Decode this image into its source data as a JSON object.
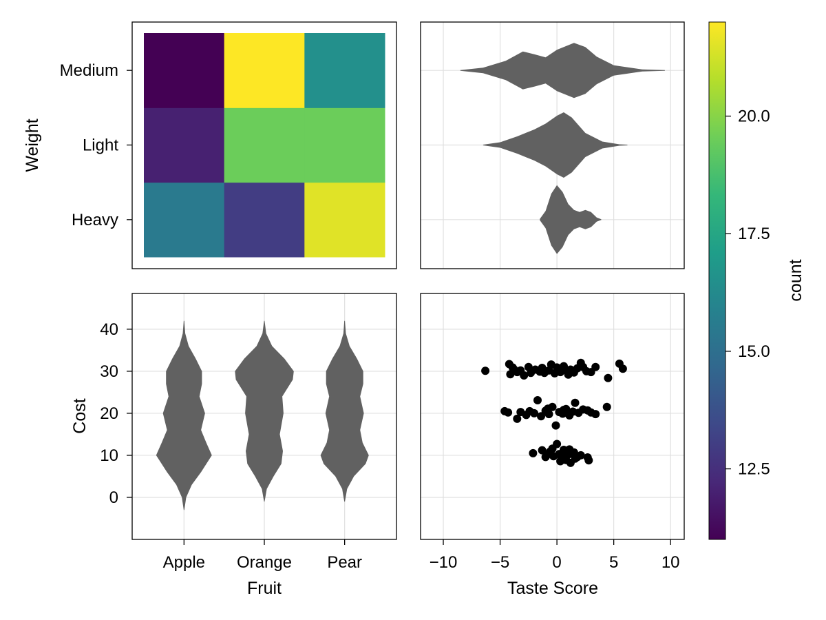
{
  "chart_data": [
    {
      "panel": "top-left",
      "type": "heatmap",
      "x_categories": [
        "Apple",
        "Orange",
        "Pear"
      ],
      "y_categories": [
        "Heavy",
        "Light",
        "Medium"
      ],
      "ylabel": "Weight",
      "values": [
        [
          15.5,
          13.0,
          21.5
        ],
        [
          12.0,
          19.5,
          19.5
        ],
        [
          11.0,
          22.0,
          16.5
        ]
      ]
    },
    {
      "panel": "top-right",
      "type": "violin",
      "orientation": "horizontal",
      "x_ticks": [
        -10,
        -5,
        0,
        5,
        10
      ],
      "xlim": [
        -12,
        11.2
      ],
      "y_categories": [
        "Heavy",
        "Light",
        "Medium"
      ],
      "grid": true,
      "series": [
        {
          "category": "Heavy",
          "profile": [
            [
              -1.5,
              0.02
            ],
            [
              -1.0,
              0.25
            ],
            [
              -0.5,
              0.75
            ],
            [
              0.0,
              1.0
            ],
            [
              0.5,
              0.8
            ],
            [
              1.0,
              0.45
            ],
            [
              1.5,
              0.28
            ],
            [
              2.0,
              0.22
            ],
            [
              2.5,
              0.28
            ],
            [
              3.0,
              0.22
            ],
            [
              3.5,
              0.06
            ],
            [
              3.9,
              0.01
            ]
          ]
        },
        {
          "category": "Light",
          "profile": [
            [
              -6.5,
              0.01
            ],
            [
              -5.0,
              0.08
            ],
            [
              -3.5,
              0.25
            ],
            [
              -2.0,
              0.45
            ],
            [
              -1.0,
              0.62
            ],
            [
              0.0,
              0.85
            ],
            [
              0.6,
              0.95
            ],
            [
              1.3,
              0.8
            ],
            [
              2.5,
              0.35
            ],
            [
              4.0,
              0.1
            ],
            [
              5.5,
              0.02
            ],
            [
              6.2,
              0.01
            ]
          ]
        },
        {
          "category": "Medium",
          "profile": [
            [
              -8.5,
              0.01
            ],
            [
              -6.5,
              0.08
            ],
            [
              -4.5,
              0.28
            ],
            [
              -3.0,
              0.55
            ],
            [
              -2.0,
              0.47
            ],
            [
              -1.0,
              0.38
            ],
            [
              0.0,
              0.6
            ],
            [
              1.5,
              0.8
            ],
            [
              2.5,
              0.68
            ],
            [
              3.5,
              0.4
            ],
            [
              5.0,
              0.15
            ],
            [
              7.5,
              0.03
            ],
            [
              9.5,
              0.01
            ]
          ]
        }
      ]
    },
    {
      "panel": "bottom-left",
      "type": "violin",
      "orientation": "vertical",
      "categories": [
        "Apple",
        "Orange",
        "Pear"
      ],
      "xlabel": "Fruit",
      "ylabel": "Cost",
      "y_ticks": [
        0,
        10,
        20,
        30,
        40
      ],
      "ylim": [
        -10,
        48.5
      ],
      "grid": true,
      "series": [
        {
          "category": "Apple",
          "profile": [
            [
              -3,
              0.01
            ],
            [
              0,
              0.07
            ],
            [
              3,
              0.25
            ],
            [
              6,
              0.55
            ],
            [
              10,
              0.9
            ],
            [
              13,
              0.72
            ],
            [
              16,
              0.55
            ],
            [
              20,
              0.68
            ],
            [
              24,
              0.5
            ],
            [
              27,
              0.58
            ],
            [
              30,
              0.58
            ],
            [
              33,
              0.38
            ],
            [
              36,
              0.15
            ],
            [
              39,
              0.04
            ],
            [
              42,
              0.01
            ]
          ]
        },
        {
          "category": "Orange",
          "profile": [
            [
              -1,
              0.01
            ],
            [
              2,
              0.08
            ],
            [
              5,
              0.3
            ],
            [
              8,
              0.55
            ],
            [
              11,
              0.6
            ],
            [
              15,
              0.5
            ],
            [
              20,
              0.62
            ],
            [
              24,
              0.58
            ],
            [
              28,
              0.92
            ],
            [
              30,
              0.95
            ],
            [
              33,
              0.65
            ],
            [
              36,
              0.25
            ],
            [
              39,
              0.06
            ],
            [
              42,
              0.01
            ]
          ]
        },
        {
          "category": "Pear",
          "profile": [
            [
              -1,
              0.01
            ],
            [
              2,
              0.08
            ],
            [
              5,
              0.3
            ],
            [
              8,
              0.68
            ],
            [
              10,
              0.78
            ],
            [
              13,
              0.58
            ],
            [
              16,
              0.5
            ],
            [
              20,
              0.62
            ],
            [
              24,
              0.5
            ],
            [
              27,
              0.6
            ],
            [
              30,
              0.6
            ],
            [
              33,
              0.4
            ],
            [
              36,
              0.16
            ],
            [
              39,
              0.04
            ],
            [
              42,
              0.01
            ]
          ]
        }
      ]
    },
    {
      "panel": "bottom-right",
      "type": "scatter",
      "xlabel": "Taste Score",
      "x_ticks": [
        -10,
        -5,
        0,
        5,
        10
      ],
      "xlim": [
        -12,
        11.2
      ],
      "ylim": [
        -10,
        48.5
      ],
      "grid": true,
      "color": "#000000",
      "points": [
        [
          -6.3,
          30.1
        ],
        [
          -4.2,
          31.7
        ],
        [
          -3.8,
          30.5
        ],
        [
          -3.5,
          29.8
        ],
        [
          -4.1,
          29.3
        ],
        [
          -3.2,
          30.2
        ],
        [
          -2.9,
          29.0
        ],
        [
          -2.5,
          31.0
        ],
        [
          -2.3,
          29.6
        ],
        [
          -1.9,
          30.4
        ],
        [
          -1.5,
          29.9
        ],
        [
          -1.1,
          29.6
        ],
        [
          -0.7,
          30.2
        ],
        [
          -0.5,
          31.6
        ],
        [
          -0.2,
          29.5
        ],
        [
          0.1,
          30.5
        ],
        [
          0.3,
          29.8
        ],
        [
          0.6,
          31.2
        ],
        [
          0.9,
          30.0
        ],
        [
          1.2,
          30.4
        ],
        [
          1.5,
          29.7
        ],
        [
          1.8,
          30.7
        ],
        [
          2.1,
          32.0
        ],
        [
          2.3,
          31.0
        ],
        [
          2.6,
          30.0
        ],
        [
          3.0,
          29.8
        ],
        [
          3.4,
          31.0
        ],
        [
          4.5,
          28.4
        ],
        [
          5.5,
          31.8
        ],
        [
          5.8,
          30.6
        ],
        [
          -3.9,
          30.9
        ],
        [
          0.0,
          30.9
        ],
        [
          -1.3,
          30.8
        ],
        [
          1.0,
          29.2
        ],
        [
          -4.6,
          20.5
        ],
        [
          -4.3,
          20.2
        ],
        [
          -3.5,
          18.7
        ],
        [
          -3.2,
          20.3
        ],
        [
          -2.7,
          19.6
        ],
        [
          -2.4,
          20.5
        ],
        [
          -2.0,
          20.0
        ],
        [
          -1.7,
          23.1
        ],
        [
          -1.4,
          19.3
        ],
        [
          -1.0,
          20.6
        ],
        [
          -0.7,
          19.8
        ],
        [
          -0.4,
          21.5
        ],
        [
          -0.1,
          17.1
        ],
        [
          0.2,
          20.3
        ],
        [
          0.5,
          19.9
        ],
        [
          0.8,
          21.0
        ],
        [
          1.1,
          19.5
        ],
        [
          1.4,
          20.4
        ],
        [
          1.6,
          22.5
        ],
        [
          1.9,
          20.1
        ],
        [
          2.3,
          20.9
        ],
        [
          2.7,
          20.7
        ],
        [
          3.0,
          20.2
        ],
        [
          3.4,
          19.8
        ],
        [
          4.4,
          21.5
        ],
        [
          -0.8,
          21.1
        ],
        [
          0.6,
          20.8
        ],
        [
          -2.1,
          10.5
        ],
        [
          -1.3,
          11.2
        ],
        [
          -0.9,
          10.0
        ],
        [
          -0.6,
          10.9
        ],
        [
          -0.3,
          9.8
        ],
        [
          0.0,
          12.7
        ],
        [
          0.2,
          10.3
        ],
        [
          0.4,
          9.4
        ],
        [
          0.6,
          11.3
        ],
        [
          0.8,
          8.9
        ],
        [
          1.0,
          10.2
        ],
        [
          1.2,
          8.2
        ],
        [
          1.5,
          10.7
        ],
        [
          1.8,
          9.6
        ],
        [
          2.1,
          10.0
        ],
        [
          2.7,
          9.5
        ],
        [
          2.8,
          8.8
        ],
        [
          -0.4,
          11.6
        ],
        [
          0.5,
          10.6
        ],
        [
          1.1,
          11.4
        ],
        [
          -1.0,
          9.6
        ],
        [
          0.3,
          8.6
        ],
        [
          1.6,
          9.2
        ]
      ]
    },
    {
      "panel": "colorbar",
      "type": "colorbar",
      "label": "count",
      "range": [
        11,
        22
      ],
      "ticks": [
        "12.5",
        "15.0",
        "17.5",
        "20.0"
      ],
      "colormap": [
        "#440154",
        "#482878",
        "#3e4989",
        "#31688e",
        "#26828e",
        "#1f9e89",
        "#35b779",
        "#6ece58",
        "#b5de2b",
        "#fde725"
      ]
    }
  ],
  "colors": {
    "violin_fill": "#616161",
    "grid": "#e0e0e0",
    "frame": "#000000"
  }
}
